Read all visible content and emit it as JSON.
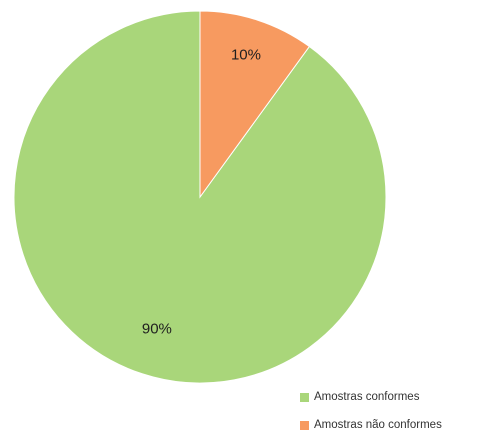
{
  "chart_data": {
    "type": "pie",
    "title": "",
    "start_angle_deg": 0,
    "direction": "counterclockwise",
    "slices": [
      {
        "label": "Amostras conformes",
        "value": 90,
        "display": "90%",
        "color": "#a9d67a"
      },
      {
        "label": "Amostras não conformes",
        "value": 10,
        "display": "10%",
        "color": "#f79a60"
      }
    ],
    "legend": {
      "position": "bottom-right",
      "entries": [
        "Amostras conformes",
        "Amostras não conformes"
      ]
    }
  }
}
